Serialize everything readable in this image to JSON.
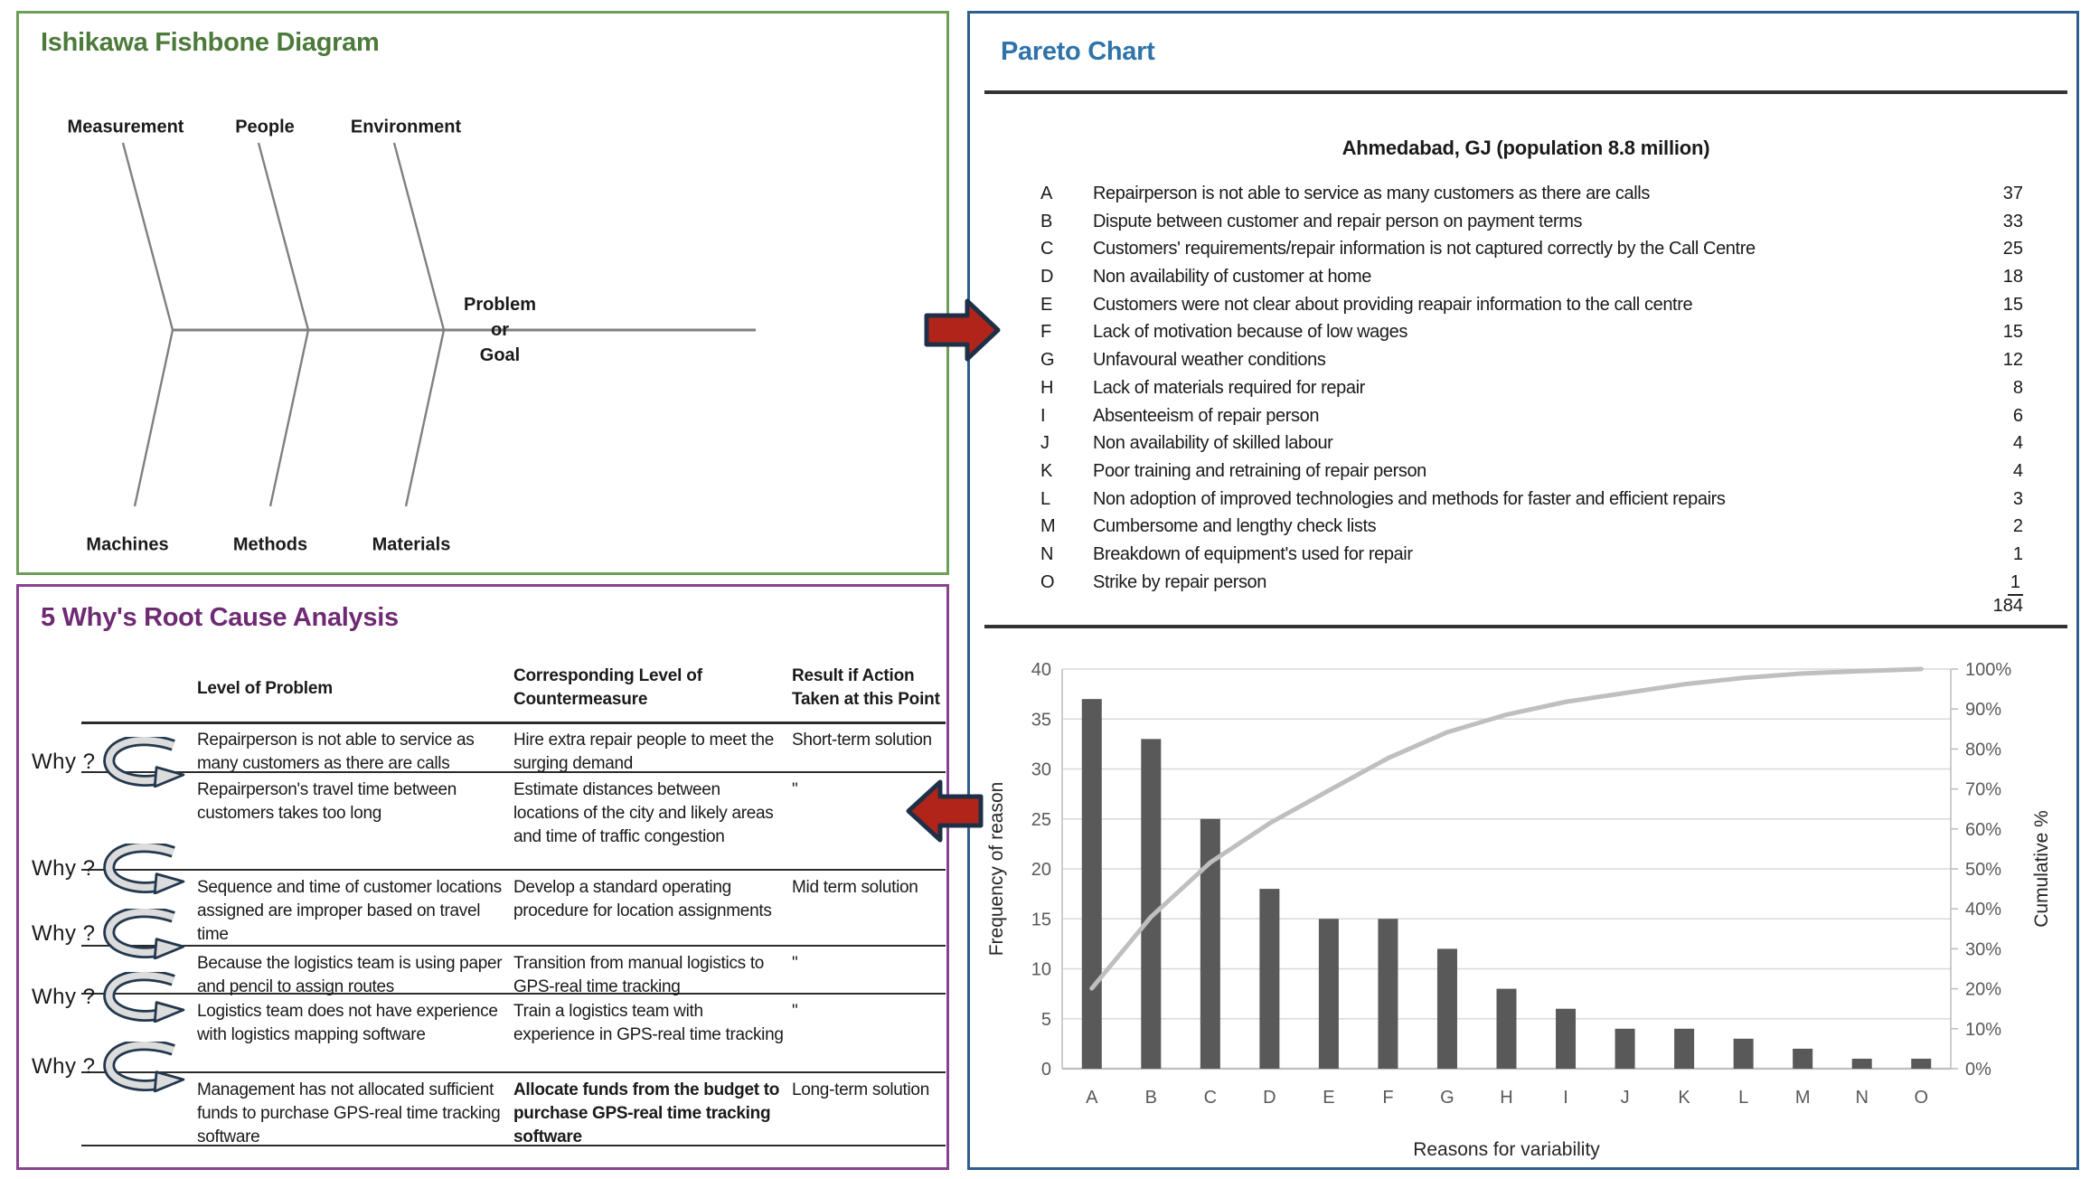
{
  "colors": {
    "fishbone_border": "#6f9e58",
    "fishbone_title": "#4c7a3a",
    "whys_border": "#8b4191",
    "whys_title": "#6e2a72",
    "pareto_border": "#2d5f90",
    "pareto_title": "#2e73a9",
    "bar": "#595959",
    "cumulative_line": "#bfbfbf",
    "gridline": "#d9d9d9",
    "arrow_fill": "#b1241a",
    "arrow_outline": "#1e3047"
  },
  "panels": {
    "fishbone": {
      "title": "Ishikawa Fishbone Diagram",
      "top_labels": [
        "Measurement",
        "People",
        "Environment"
      ],
      "bottom_labels": [
        "Machines",
        "Methods",
        "Materials"
      ],
      "head_lines": [
        "Problem",
        "or",
        "Goal"
      ]
    },
    "five_whys": {
      "title": "5 Why's Root Cause Analysis",
      "why_label": "Why ?",
      "headers": [
        "Level of Problem",
        "Corresponding Level of Countermeasure",
        "Result if Action Taken at this Point"
      ],
      "rows": [
        {
          "problem": "Repairperson is not able to service as many customers as there are calls",
          "countermeasure": "Hire extra repair people to meet the surging demand",
          "result": "Short-term solution",
          "countermeasure_bold": false
        },
        {
          "problem": "Repairperson's travel time between customers takes too long",
          "countermeasure": "Estimate distances between locations of the city and likely areas and time of traffic congestion",
          "result": "\"",
          "countermeasure_bold": false
        },
        {
          "problem": "Sequence and time of customer locations assigned are improper based on travel time",
          "countermeasure": "Develop a standard operating procedure for location assignments",
          "result": "Mid term solution",
          "countermeasure_bold": false
        },
        {
          "problem": "Because the logistics team is using paper and pencil to assign routes",
          "countermeasure": "Transition from manual logistics to GPS-real time tracking",
          "result": "\"",
          "countermeasure_bold": false
        },
        {
          "problem": "Logistics team does not have experience with logistics mapping software",
          "countermeasure": "Train a logistics team with experience in GPS-real time tracking",
          "result": "\"",
          "countermeasure_bold": false
        },
        {
          "problem": "Management has not allocated sufficient funds to purchase GPS-real time tracking software",
          "countermeasure": "Allocate funds from the budget to purchase GPS-real time tracking software",
          "result": "Long-term solution",
          "countermeasure_bold": true
        }
      ]
    },
    "pareto": {
      "title": "Pareto Chart",
      "subtitle": "Ahmedabad, GJ (population 8.8 million)",
      "items": [
        {
          "code": "A",
          "description": "Repairperson is not able to service as many customers as there are calls",
          "count": "37"
        },
        {
          "code": "B",
          "description": "Dispute between customer and repair person on payment terms",
          "count": "33"
        },
        {
          "code": "C",
          "description": "Customers' requirements/repair information is not captured correctly by the Call Centre",
          "count": "25"
        },
        {
          "code": "D",
          "description": "Non availability of customer at home",
          "count": "18"
        },
        {
          "code": "E",
          "description": "Customers were not clear about providing reapair information to the call centre",
          "count": "15"
        },
        {
          "code": "F",
          "description": "Lack of motivation because of low wages",
          "count": "15"
        },
        {
          "code": "G",
          "description": "Unfavoural weather conditions",
          "count": "12"
        },
        {
          "code": "H",
          "description": "Lack of materials required for repair",
          "count": "8"
        },
        {
          "code": "I",
          "description": "Absenteeism of repair person",
          "count": "6"
        },
        {
          "code": "J",
          "description": "Non availability of skilled labour",
          "count": "4"
        },
        {
          "code": "K",
          "description": "Poor training and retraining of repair person",
          "count": "4"
        },
        {
          "code": "L",
          "description": "Non adoption of improved technologies and methods for faster and efficient repairs",
          "count": "3"
        },
        {
          "code": "M",
          "description": "Cumbersome and lengthy check lists",
          "count": "2"
        },
        {
          "code": "N",
          "description": "Breakdown of equipment's used for repair",
          "count": "1"
        },
        {
          "code": "O",
          "description": "Strike by repair person",
          "count": "1"
        }
      ],
      "total": "184"
    }
  },
  "chart_data": {
    "type": "bar",
    "title": "Ahmedabad, GJ (population 8.8 million)",
    "categories": [
      "A",
      "B",
      "C",
      "D",
      "E",
      "F",
      "G",
      "H",
      "I",
      "J",
      "K",
      "L",
      "M",
      "N",
      "O"
    ],
    "series": [
      {
        "name": "Frequency of reason",
        "type": "bar",
        "values": [
          37,
          33,
          25,
          18,
          15,
          15,
          12,
          8,
          6,
          4,
          4,
          3,
          2,
          1,
          1
        ]
      },
      {
        "name": "Cumulative %",
        "type": "line",
        "axis": "right",
        "values": [
          20.1,
          38.0,
          51.6,
          61.4,
          69.6,
          77.7,
          84.2,
          88.6,
          91.8,
          94.0,
          96.2,
          97.8,
          98.9,
          99.5,
          100.0
        ]
      }
    ],
    "xlabel": "Reasons for variability",
    "ylabel": "Frequency of reason",
    "y2label": "Cumulative %",
    "ylim": [
      0,
      40
    ],
    "ytick_step": 5,
    "y2lim": [
      0,
      100
    ],
    "y2tick_step": 10,
    "y2tick_suffix": "%",
    "grid": true,
    "legend": "none"
  }
}
